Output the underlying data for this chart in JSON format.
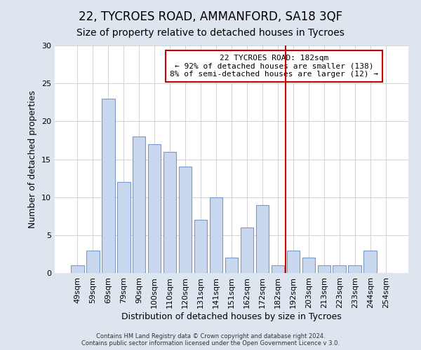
{
  "title": "22, TYCROES ROAD, AMMANFORD, SA18 3QF",
  "subtitle": "Size of property relative to detached houses in Tycroes",
  "xlabel": "Distribution of detached houses by size in Tycroes",
  "ylabel": "Number of detached properties",
  "bar_labels": [
    "49sqm",
    "59sqm",
    "69sqm",
    "79sqm",
    "90sqm",
    "100sqm",
    "110sqm",
    "120sqm",
    "131sqm",
    "141sqm",
    "151sqm",
    "162sqm",
    "172sqm",
    "182sqm",
    "192sqm",
    "203sqm",
    "213sqm",
    "223sqm",
    "233sqm",
    "244sqm",
    "254sqm"
  ],
  "bar_values": [
    1,
    3,
    23,
    12,
    18,
    17,
    16,
    14,
    7,
    10,
    2,
    6,
    9,
    1,
    3,
    2,
    1,
    1,
    1,
    3,
    0
  ],
  "bar_color": "#c8d8ee",
  "bar_edge_color": "#7799cc",
  "highlight_index": 13,
  "highlight_color": "#cc0000",
  "annotation_title": "22 TYCROES ROAD: 182sqm",
  "annotation_line1": "← 92% of detached houses are smaller (138)",
  "annotation_line2": "8% of semi-detached houses are larger (12) →",
  "annotation_box_color": "#cc0000",
  "figure_bg_color": "#dde5ef",
  "axes_bg_color": "#ffffff",
  "ylim": [
    0,
    30
  ],
  "yticks": [
    0,
    5,
    10,
    15,
    20,
    25,
    30
  ],
  "footer": "Contains HM Land Registry data © Crown copyright and database right 2024.\nContains public sector information licensed under the Open Government Licence v 3.0.",
  "title_fontsize": 12,
  "subtitle_fontsize": 10,
  "tick_fontsize": 8,
  "label_fontsize": 9
}
